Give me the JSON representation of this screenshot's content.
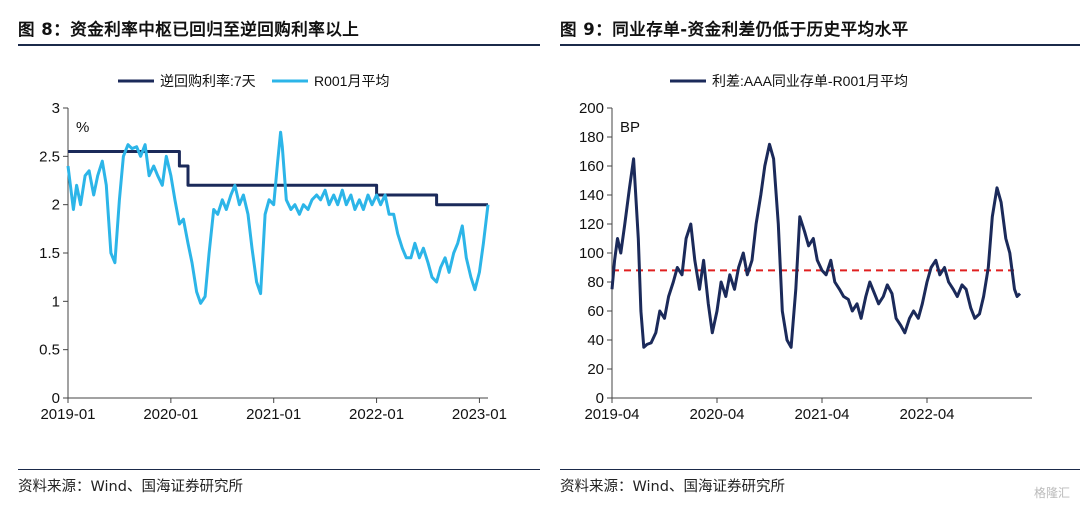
{
  "figures": [
    {
      "title": "图 8：资金利率中枢已回归至逆回购利率以上",
      "source": "资料来源：Wind、国海证券研究所"
    },
    {
      "title": "图 9：同业存单-资金利差仍低于历史平均水平",
      "source": "资料来源：Wind、国海证券研究所"
    }
  ],
  "watermark": "格隆汇",
  "chart_data": [
    {
      "type": "line",
      "title": "",
      "xlabel": "",
      "ylabel": "%",
      "x_range": [
        "2019-01",
        "2023-02"
      ],
      "x_ticks": [
        "2019-01",
        "2020-01",
        "2021-01",
        "2022-01",
        "2023-01"
      ],
      "ylim": [
        0,
        3
      ],
      "y_ticks": [
        "0",
        "0.5",
        "1",
        "1.5",
        "2",
        "2.5",
        "3"
      ],
      "grid": false,
      "legend_position": "top",
      "colors": {
        "逆回购利率:7天": "#1b2a5a",
        "R001月平均": "#2cb5e8"
      },
      "series": [
        {
          "name": "逆回购利率:7天",
          "style": "step",
          "points": [
            [
              "2019-01",
              2.55
            ],
            [
              "2020-02",
              2.55
            ],
            [
              "2020-02",
              2.4
            ],
            [
              "2020-03",
              2.4
            ],
            [
              "2020-03",
              2.2
            ],
            [
              "2022-01",
              2.2
            ],
            [
              "2022-01",
              2.1
            ],
            [
              "2022-08",
              2.1
            ],
            [
              "2022-08",
              2.0
            ],
            [
              "2023-02",
              2.0
            ]
          ]
        },
        {
          "name": "R001月平均",
          "style": "line",
          "points": [
            [
              "2019-01",
              2.4
            ],
            [
              "2019-01-20",
              1.95
            ],
            [
              "2019-02",
              2.2
            ],
            [
              "2019-02-15",
              2.0
            ],
            [
              "2019-03",
              2.3
            ],
            [
              "2019-03-15",
              2.35
            ],
            [
              "2019-04",
              2.1
            ],
            [
              "2019-04-15",
              2.3
            ],
            [
              "2019-05",
              2.45
            ],
            [
              "2019-05-15",
              2.2
            ],
            [
              "2019-06",
              1.5
            ],
            [
              "2019-06-15",
              1.4
            ],
            [
              "2019-07",
              2.05
            ],
            [
              "2019-07-15",
              2.5
            ],
            [
              "2019-08",
              2.62
            ],
            [
              "2019-08-15",
              2.58
            ],
            [
              "2019-09",
              2.6
            ],
            [
              "2019-09-15",
              2.5
            ],
            [
              "2019-10",
              2.62
            ],
            [
              "2019-10-15",
              2.3
            ],
            [
              "2019-11",
              2.4
            ],
            [
              "2019-11-15",
              2.3
            ],
            [
              "2019-12",
              2.2
            ],
            [
              "2019-12-15",
              2.5
            ],
            [
              "2020-01",
              2.3
            ],
            [
              "2020-01-15",
              2.05
            ],
            [
              "2020-02",
              1.8
            ],
            [
              "2020-02-15",
              1.85
            ],
            [
              "2020-03",
              1.6
            ],
            [
              "2020-03-15",
              1.4
            ],
            [
              "2020-04",
              1.1
            ],
            [
              "2020-04-15",
              0.98
            ],
            [
              "2020-05",
              1.05
            ],
            [
              "2020-05-15",
              1.5
            ],
            [
              "2020-06",
              1.95
            ],
            [
              "2020-06-15",
              1.9
            ],
            [
              "2020-07",
              2.05
            ],
            [
              "2020-07-15",
              1.95
            ],
            [
              "2020-08",
              2.1
            ],
            [
              "2020-08-15",
              2.2
            ],
            [
              "2020-09",
              2.0
            ],
            [
              "2020-09-15",
              2.1
            ],
            [
              "2020-10",
              1.9
            ],
            [
              "2020-10-15",
              1.55
            ],
            [
              "2020-11",
              1.2
            ],
            [
              "2020-11-15",
              1.08
            ],
            [
              "2020-12",
              1.9
            ],
            [
              "2020-12-15",
              2.05
            ],
            [
              "2021-01",
              2.0
            ],
            [
              "2021-01-15",
              2.45
            ],
            [
              "2021-01-25",
              2.75
            ],
            [
              "2021-02",
              2.6
            ],
            [
              "2021-02-15",
              2.05
            ],
            [
              "2021-03",
              1.95
            ],
            [
              "2021-03-15",
              2.0
            ],
            [
              "2021-04",
              1.9
            ],
            [
              "2021-04-15",
              2.0
            ],
            [
              "2021-05",
              1.95
            ],
            [
              "2021-05-15",
              2.05
            ],
            [
              "2021-06",
              2.1
            ],
            [
              "2021-06-15",
              2.05
            ],
            [
              "2021-07",
              2.15
            ],
            [
              "2021-07-15",
              2.0
            ],
            [
              "2021-08",
              2.1
            ],
            [
              "2021-08-15",
              2.0
            ],
            [
              "2021-09",
              2.15
            ],
            [
              "2021-09-15",
              2.0
            ],
            [
              "2021-10",
              2.1
            ],
            [
              "2021-10-15",
              1.95
            ],
            [
              "2021-11",
              2.05
            ],
            [
              "2021-11-15",
              1.95
            ],
            [
              "2021-12",
              2.1
            ],
            [
              "2021-12-15",
              2.0
            ],
            [
              "2022-01",
              2.1
            ],
            [
              "2022-01-15",
              2.0
            ],
            [
              "2022-02",
              2.1
            ],
            [
              "2022-02-15",
              1.9
            ],
            [
              "2022-03",
              1.9
            ],
            [
              "2022-03-15",
              1.7
            ],
            [
              "2022-04",
              1.55
            ],
            [
              "2022-04-15",
              1.45
            ],
            [
              "2022-05",
              1.45
            ],
            [
              "2022-05-15",
              1.6
            ],
            [
              "2022-06",
              1.45
            ],
            [
              "2022-06-15",
              1.55
            ],
            [
              "2022-07",
              1.4
            ],
            [
              "2022-07-15",
              1.25
            ],
            [
              "2022-08",
              1.2
            ],
            [
              "2022-08-15",
              1.35
            ],
            [
              "2022-09",
              1.45
            ],
            [
              "2022-09-15",
              1.3
            ],
            [
              "2022-10",
              1.5
            ],
            [
              "2022-10-15",
              1.6
            ],
            [
              "2022-11",
              1.78
            ],
            [
              "2022-11-15",
              1.45
            ],
            [
              "2022-12",
              1.25
            ],
            [
              "2022-12-15",
              1.12
            ],
            [
              "2023-01",
              1.3
            ],
            [
              "2023-01-15",
              1.6
            ],
            [
              "2023-02",
              2.0
            ]
          ]
        }
      ]
    },
    {
      "type": "line",
      "title": "",
      "xlabel": "",
      "ylabel": "BP",
      "x_range": [
        "2019-04",
        "2023-04"
      ],
      "x_ticks": [
        "2019-04",
        "2020-04",
        "2021-04",
        "2022-04"
      ],
      "ylim": [
        0,
        200
      ],
      "y_ticks": [
        "0",
        "20",
        "40",
        "60",
        "80",
        "100",
        "120",
        "140",
        "160",
        "180",
        "200"
      ],
      "grid": false,
      "legend_position": "top",
      "colors": {
        "利差:AAA同业存单-R001月平均": "#1b2a5a",
        "reference": "#e02020"
      },
      "reference_line": {
        "y": 88,
        "style": "dashed"
      },
      "series": [
        {
          "name": "利差:AAA同业存单-R001月平均",
          "points": [
            [
              "2019-04",
              75
            ],
            [
              "2019-04-10",
              95
            ],
            [
              "2019-04-20",
              110
            ],
            [
              "2019-05",
              100
            ],
            [
              "2019-05-15",
              120
            ],
            [
              "2019-06",
              145
            ],
            [
              "2019-06-15",
              165
            ],
            [
              "2019-07",
              110
            ],
            [
              "2019-07-10",
              60
            ],
            [
              "2019-07-20",
              35
            ],
            [
              "2019-08",
              37
            ],
            [
              "2019-08-15",
              38
            ],
            [
              "2019-09",
              45
            ],
            [
              "2019-09-15",
              60
            ],
            [
              "2019-10",
              55
            ],
            [
              "2019-10-15",
              70
            ],
            [
              "2019-11",
              80
            ],
            [
              "2019-11-15",
              90
            ],
            [
              "2019-12",
              85
            ],
            [
              "2019-12-15",
              110
            ],
            [
              "2020-01",
              120
            ],
            [
              "2020-01-15",
              95
            ],
            [
              "2020-02",
              75
            ],
            [
              "2020-02-15",
              95
            ],
            [
              "2020-03",
              65
            ],
            [
              "2020-03-15",
              45
            ],
            [
              "2020-04",
              60
            ],
            [
              "2020-04-15",
              80
            ],
            [
              "2020-05",
              70
            ],
            [
              "2020-05-15",
              85
            ],
            [
              "2020-06",
              75
            ],
            [
              "2020-06-15",
              90
            ],
            [
              "2020-07",
              100
            ],
            [
              "2020-07-15",
              85
            ],
            [
              "2020-08",
              95
            ],
            [
              "2020-08-15",
              120
            ],
            [
              "2020-09",
              140
            ],
            [
              "2020-09-15",
              160
            ],
            [
              "2020-10",
              175
            ],
            [
              "2020-10-15",
              165
            ],
            [
              "2020-11",
              120
            ],
            [
              "2020-11-15",
              60
            ],
            [
              "2020-12",
              40
            ],
            [
              "2020-12-15",
              35
            ],
            [
              "2021-01",
              75
            ],
            [
              "2021-01-15",
              125
            ],
            [
              "2021-02",
              115
            ],
            [
              "2021-02-15",
              105
            ],
            [
              "2021-03",
              110
            ],
            [
              "2021-03-15",
              95
            ],
            [
              "2021-04",
              88
            ],
            [
              "2021-04-15",
              85
            ],
            [
              "2021-05",
              95
            ],
            [
              "2021-05-15",
              80
            ],
            [
              "2021-06",
              75
            ],
            [
              "2021-06-15",
              70
            ],
            [
              "2021-07",
              68
            ],
            [
              "2021-07-15",
              60
            ],
            [
              "2021-08",
              65
            ],
            [
              "2021-08-15",
              55
            ],
            [
              "2021-09",
              70
            ],
            [
              "2021-09-15",
              80
            ],
            [
              "2021-10",
              72
            ],
            [
              "2021-10-15",
              65
            ],
            [
              "2021-11",
              70
            ],
            [
              "2021-11-15",
              78
            ],
            [
              "2021-12",
              72
            ],
            [
              "2021-12-15",
              55
            ],
            [
              "2022-01",
              50
            ],
            [
              "2022-01-15",
              45
            ],
            [
              "2022-02",
              55
            ],
            [
              "2022-02-15",
              60
            ],
            [
              "2022-03",
              55
            ],
            [
              "2022-03-15",
              65
            ],
            [
              "2022-04",
              80
            ],
            [
              "2022-04-15",
              90
            ],
            [
              "2022-05",
              95
            ],
            [
              "2022-05-15",
              85
            ],
            [
              "2022-06",
              90
            ],
            [
              "2022-06-15",
              80
            ],
            [
              "2022-07",
              75
            ],
            [
              "2022-07-15",
              70
            ],
            [
              "2022-08",
              78
            ],
            [
              "2022-08-15",
              75
            ],
            [
              "2022-09",
              62
            ],
            [
              "2022-09-15",
              55
            ],
            [
              "2022-10",
              58
            ],
            [
              "2022-10-15",
              70
            ],
            [
              "2022-11",
              90
            ],
            [
              "2022-11-15",
              125
            ],
            [
              "2022-12",
              145
            ],
            [
              "2022-12-15",
              135
            ],
            [
              "2023-01",
              110
            ],
            [
              "2023-01-15",
              100
            ],
            [
              "2023-02",
              75
            ],
            [
              "2023-02-10",
              70
            ],
            [
              "2023-02-20",
              72
            ]
          ]
        }
      ]
    }
  ]
}
